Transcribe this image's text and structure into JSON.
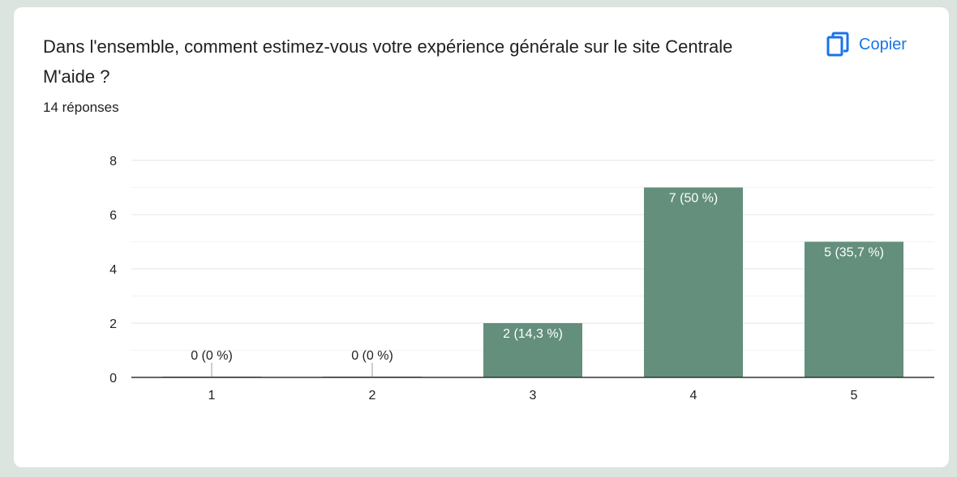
{
  "card": {
    "question": "Dans l'ensemble, comment estimez-vous votre expérience générale sur le site Centrale M'aide ?",
    "response_count": "14 réponses",
    "copy_label": "Copier",
    "copy_icon": "copy-icon"
  },
  "colors": {
    "bar": "#638f7c",
    "accent": "#1a73e8",
    "background": "#dbe4df"
  },
  "chart_data": {
    "type": "bar",
    "title": "",
    "xlabel": "",
    "ylabel": "",
    "categories": [
      "1",
      "2",
      "3",
      "4",
      "5"
    ],
    "values": [
      0,
      0,
      2,
      7,
      5
    ],
    "data_labels": [
      "0 (0 %)",
      "0 (0 %)",
      "2 (14,3 %)",
      "7 (50 %)",
      "5 (35,7 %)"
    ],
    "ylim": [
      0,
      8
    ],
    "yticks": [
      "0",
      "2",
      "4",
      "6",
      "8"
    ],
    "grid": true,
    "legend": "none"
  }
}
